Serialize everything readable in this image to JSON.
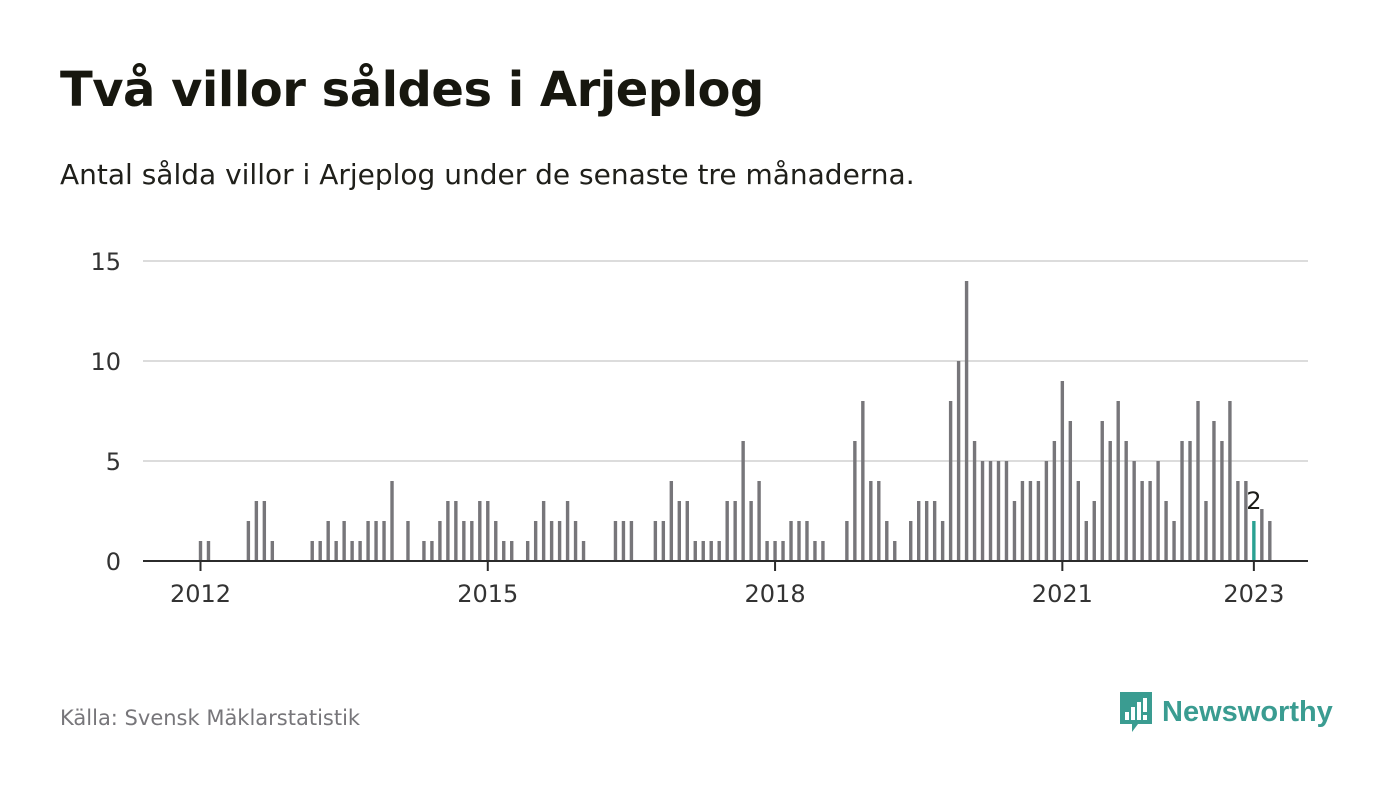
{
  "header": {
    "title": "Två villor såldes i Arjeplog",
    "subtitle": "Antal sålda villor i Arjeplog under de senaste tre månaderna."
  },
  "footer": {
    "source": "Källa: Svensk Mäklarstatistik",
    "brand": "Newsworthy",
    "brand_icon": "newsworthy-logo-icon"
  },
  "colors": {
    "bar": "#77767a",
    "highlight": "#2aa192",
    "grid": "#dcdcdc",
    "axis": "#2b2b2b",
    "brand": "#3a9c91"
  },
  "chart_data": {
    "type": "bar",
    "title": "Antal sålda villor i Arjeplog",
    "xlabel": "",
    "ylabel": "",
    "ylim": [
      0,
      15
    ],
    "yticks": [
      0,
      5,
      10,
      15
    ],
    "grid": true,
    "x_start": "2011-07",
    "x_ticks": [
      {
        "label": "2012",
        "index": 7
      },
      {
        "label": "2015",
        "index": 43
      },
      {
        "label": "2018",
        "index": 79
      },
      {
        "label": "2021",
        "index": 115
      },
      {
        "label": "2023",
        "index": 139
      }
    ],
    "values": [
      0,
      0,
      0,
      0,
      0,
      0,
      0,
      1,
      1,
      0,
      0,
      0,
      0,
      2,
      3,
      3,
      1,
      0,
      0,
      0,
      0,
      1,
      1,
      2,
      1,
      2,
      1,
      1,
      2,
      2,
      2,
      4,
      0,
      2,
      0,
      1,
      1,
      2,
      3,
      3,
      2,
      2,
      3,
      3,
      2,
      1,
      1,
      0,
      1,
      2,
      3,
      2,
      2,
      3,
      2,
      1,
      0,
      0,
      0,
      2,
      2,
      2,
      0,
      0,
      2,
      2,
      4,
      3,
      3,
      1,
      1,
      1,
      1,
      3,
      3,
      6,
      3,
      4,
      1,
      1,
      1,
      2,
      2,
      2,
      1,
      1,
      0,
      0,
      2,
      6,
      8,
      4,
      4,
      2,
      1,
      0,
      2,
      3,
      3,
      3,
      2,
      8,
      10,
      14,
      6,
      5,
      5,
      5,
      5,
      3,
      4,
      4,
      4,
      5,
      6,
      9,
      7,
      4,
      2,
      3,
      7,
      6,
      8,
      6,
      5,
      4,
      4,
      5,
      3,
      2,
      6,
      6,
      8,
      3,
      7,
      6,
      8,
      4,
      4,
      2,
      2.6,
      2
    ],
    "highlight_index": 139,
    "highlight_label": "2"
  }
}
